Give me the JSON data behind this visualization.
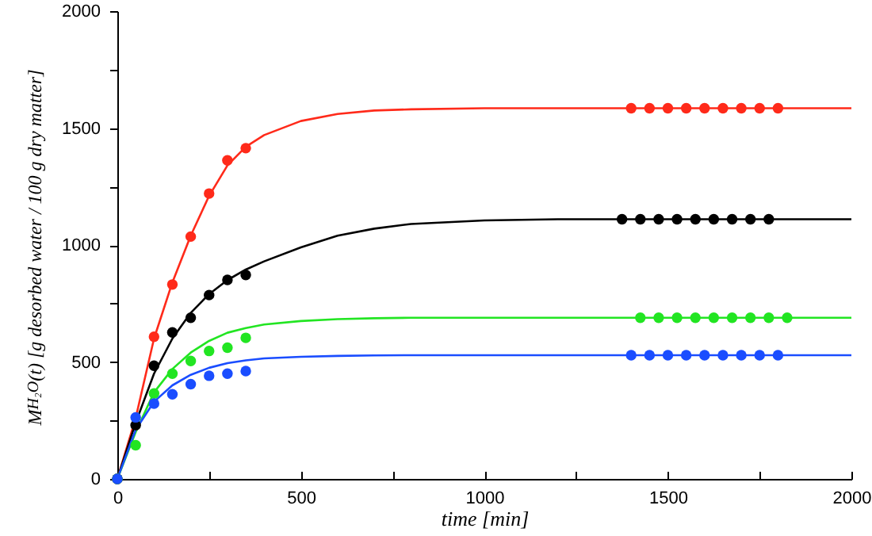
{
  "chart_data": {
    "type": "scatter",
    "xlabel": "time [min]",
    "ylabel": "M$_{H₂O}$(t) [g desorbed water / 100 g dry matter]",
    "xlim": [
      0,
      2000
    ],
    "ylim": [
      0,
      2000
    ],
    "xticks": [
      0,
      {
        "value": 250,
        "label": null
      },
      500,
      {
        "value": 750,
        "label": null
      },
      1000,
      {
        "value": 1250,
        "label": null
      },
      1500,
      {
        "value": 1750,
        "label": null
      },
      2000
    ],
    "yticks": [
      0,
      {
        "value": 250,
        "label": null
      },
      500,
      {
        "value": 750,
        "label": null
      },
      1000,
      {
        "value": 1250,
        "label": null
      },
      1500,
      {
        "value": 1750,
        "label": null
      },
      2000
    ],
    "grid": false,
    "marker": "circle",
    "line_style": "solid",
    "series": [
      {
        "type": "line",
        "marker": "none",
        "color": "#ff2a1a",
        "x": [
          0,
          50,
          100,
          150,
          200,
          250,
          300,
          350,
          400,
          500,
          600,
          700,
          800,
          1000,
          1200,
          1500,
          2000
        ],
        "values": [
          0,
          260,
          600,
          840,
          1040,
          1210,
          1340,
          1420,
          1470,
          1530,
          1560,
          1575,
          1580,
          1585,
          1585,
          1585,
          1585
        ]
      },
      {
        "type": "line",
        "marker": "none",
        "color": "#000000",
        "x": [
          0,
          50,
          100,
          150,
          200,
          250,
          300,
          350,
          400,
          500,
          600,
          700,
          800,
          1000,
          1200,
          1500,
          2000
        ],
        "values": [
          0,
          240,
          450,
          600,
          710,
          790,
          850,
          895,
          930,
          990,
          1040,
          1070,
          1090,
          1105,
          1110,
          1110,
          1110
        ]
      },
      {
        "type": "line",
        "marker": "none",
        "color": "#22e522",
        "x": [
          0,
          50,
          100,
          150,
          200,
          250,
          300,
          350,
          400,
          500,
          600,
          700,
          800,
          1000,
          1200,
          1500,
          2000
        ],
        "values": [
          0,
          200,
          370,
          470,
          540,
          590,
          625,
          645,
          660,
          675,
          683,
          687,
          689,
          689,
          689,
          689,
          689
        ]
      },
      {
        "type": "line",
        "marker": "none",
        "color": "#1a4dff",
        "x": [
          0,
          50,
          100,
          150,
          200,
          250,
          300,
          350,
          400,
          500,
          600,
          700,
          800,
          1000,
          1200,
          1500,
          2000
        ],
        "values": [
          0,
          210,
          330,
          400,
          445,
          475,
          495,
          507,
          515,
          522,
          526,
          528,
          529,
          529,
          529,
          529,
          529
        ]
      },
      {
        "color": "#ff2a1a",
        "x": [
          0,
          50,
          100,
          150,
          200,
          250,
          300,
          350,
          1400,
          1450,
          1500,
          1550,
          1600,
          1650,
          1700,
          1750,
          1800
        ],
        "values": [
          0,
          null,
          608,
          831,
          1036,
          1220,
          1362,
          1414,
          1585,
          1585,
          1585,
          1585,
          1585,
          1585,
          1585,
          1585,
          1585
        ]
      },
      {
        "color": "#000000",
        "x": [
          0,
          50,
          100,
          150,
          200,
          250,
          300,
          350,
          1375,
          1425,
          1475,
          1525,
          1575,
          1625,
          1675,
          1725,
          1775
        ],
        "values": [
          0,
          230,
          484,
          626,
          689,
          786,
          851,
          872,
          1110,
          1110,
          1110,
          1110,
          1110,
          1110,
          1110,
          1110,
          1110
        ]
      },
      {
        "color": "#22e522",
        "x": [
          0,
          50,
          100,
          150,
          200,
          250,
          300,
          350,
          1425,
          1475,
          1525,
          1575,
          1625,
          1675,
          1725,
          1775,
          1825
        ],
        "values": [
          0,
          144,
          365,
          450,
          504,
          547,
          561,
          603,
          689,
          689,
          689,
          689,
          689,
          689,
          689,
          689,
          689
        ]
      },
      {
        "color": "#1a4dff",
        "x": [
          0,
          50,
          100,
          150,
          200,
          250,
          300,
          350,
          1400,
          1450,
          1500,
          1550,
          1600,
          1650,
          1700,
          1750,
          1800
        ],
        "values": [
          0,
          263,
          322,
          362,
          405,
          441,
          450,
          461,
          529,
          529,
          529,
          529,
          529,
          529,
          529,
          529,
          529
        ]
      }
    ]
  }
}
